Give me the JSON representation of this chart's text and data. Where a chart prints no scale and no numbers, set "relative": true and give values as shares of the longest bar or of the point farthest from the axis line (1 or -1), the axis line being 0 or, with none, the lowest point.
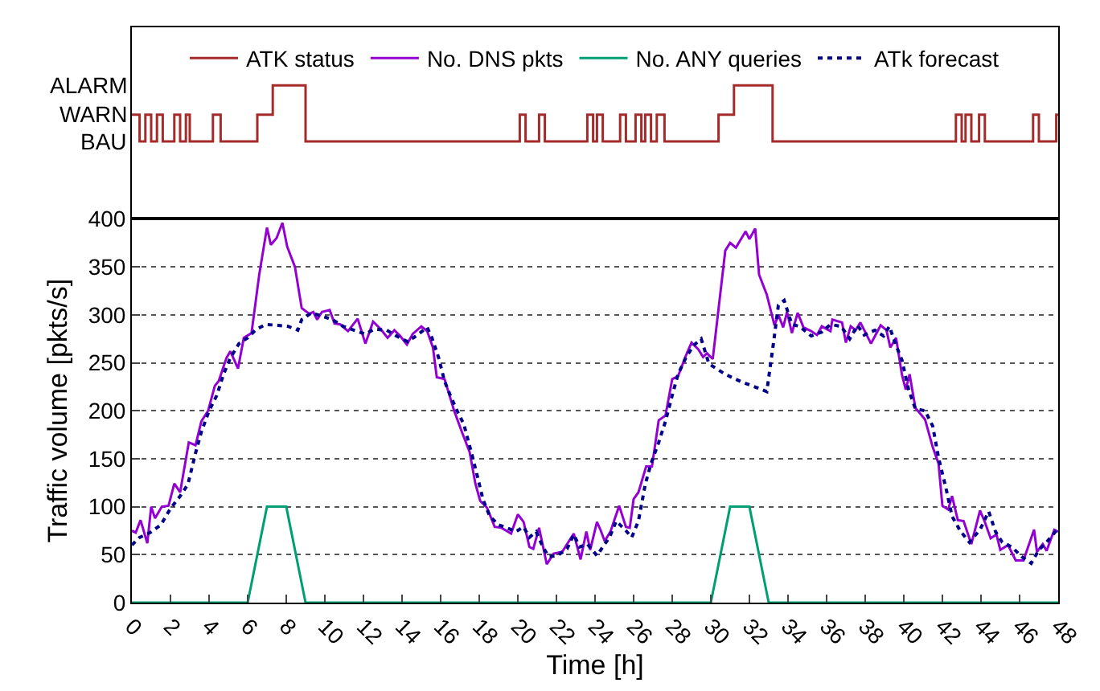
{
  "chart_data": [
    {
      "type": "step",
      "xlim": [
        0,
        48
      ],
      "tick_labels": false,
      "relative": true,
      "annotations": [
        "BAU",
        "WARN",
        "ALARM"
      ],
      "legend": "top",
      "marker": "none",
      "series": [
        {
          "name": "ATK status",
          "color": "#a52a2a",
          "x": [
            0,
            0.4,
            0.7,
            1.0,
            1.3,
            1.6,
            2.2,
            2.5,
            2.8,
            3.0,
            4.2,
            4.6,
            6.5,
            7.3,
            9.0,
            20.1,
            20.4,
            21.1,
            21.4,
            23.6,
            23.9,
            24.1,
            24.4,
            25.3,
            25.6,
            26.1,
            26.4,
            26.6,
            26.9,
            27.2,
            27.6,
            30.4,
            31.2,
            33.2,
            42.7,
            43.0,
            43.2,
            43.5,
            43.9,
            44.2,
            46.7,
            47.0,
            47.9,
            48
          ],
          "values": [
            0.78,
            0.58,
            0.78,
            0.58,
            0.78,
            0.58,
            0.78,
            0.58,
            0.78,
            0.58,
            0.78,
            0.58,
            0.78,
            1,
            0.58,
            0.78,
            0.58,
            0.78,
            0.58,
            0.78,
            0.58,
            0.78,
            0.58,
            0.78,
            0.58,
            0.78,
            0.58,
            0.78,
            0.58,
            0.78,
            0.58,
            0.78,
            1,
            0.58,
            0.78,
            0.58,
            0.78,
            0.58,
            0.78,
            0.58,
            0.78,
            0.58,
            0.78,
            0.78
          ]
        }
      ]
    },
    {
      "type": "line",
      "xlabel": "Time [h]",
      "ylabel": "Traffic volume [pkts/s]",
      "xlim": [
        0,
        48
      ],
      "xticks": [
        0,
        2,
        4,
        6,
        8,
        10,
        12,
        14,
        16,
        18,
        20,
        22,
        24,
        26,
        28,
        30,
        32,
        34,
        36,
        38,
        40,
        42,
        44,
        46,
        48
      ],
      "ylim": [
        0,
        400
      ],
      "yticks": [
        0,
        50,
        100,
        150,
        200,
        250,
        300,
        350,
        400
      ],
      "grid": "y",
      "legend": "top",
      "marker": "none",
      "series": [
        {
          "name": "No. DNS pkts",
          "color": "#9400d3",
          "x": [
            0,
            0.2,
            0.45,
            0.8,
            1,
            1.2,
            1.55,
            1.9,
            2.2,
            2.5,
            2.95,
            3.3,
            3.6,
            3.95,
            4.3,
            4.5,
            4.9,
            5.1,
            5.5,
            5.8,
            6.2,
            6.6,
            7.0,
            7.2,
            7.5,
            7.8,
            8.05,
            8.45,
            8.8,
            9.2,
            9.4,
            9.6,
            9.85,
            10.25,
            10.5,
            10.8,
            11.2,
            11.7,
            12.1,
            12.5,
            12.9,
            13.25,
            13.6,
            13.9,
            14.25,
            14.55,
            15,
            15.3,
            15.6,
            15.8,
            16.2,
            16.4,
            16.7,
            17.1,
            17.5,
            17.8,
            18.05,
            18.4,
            18.8,
            19.15,
            19.65,
            20,
            20.3,
            20.6,
            20.8,
            21.1,
            21.5,
            21.85,
            22.3,
            22.9,
            23.25,
            23.55,
            23.75,
            24.1,
            24.3,
            24.5,
            24.8,
            25.25,
            25.6,
            25.8,
            26,
            26.25,
            26.65,
            26.95,
            27.3,
            27.65,
            28,
            28.3,
            28.7,
            29,
            29.35,
            29.6,
            29.8,
            30.1,
            30.75,
            31,
            31.3,
            31.8,
            32,
            32.3,
            32.5,
            32.9,
            33.3,
            33.5,
            33.75,
            33.95,
            34.2,
            34.5,
            34.8,
            35.2,
            35.5,
            35.75,
            36.2,
            36.3,
            36.8,
            37,
            37.25,
            37.5,
            37.75,
            37.95,
            38.3,
            38.8,
            39.1,
            39.3,
            39.6,
            39.9,
            40.1,
            40.3,
            40.6,
            41.1,
            41.5,
            41.8,
            42,
            42.3,
            42.5,
            42.8,
            43.1,
            43.5,
            43.95,
            44.2,
            44.5,
            44.8,
            45,
            45.4,
            45.8,
            46.2,
            46.75,
            46.9,
            47.2,
            47.4,
            47.8,
            48
          ],
          "values": [
            75,
            73,
            86,
            62,
            100,
            88,
            100,
            101,
            124,
            115,
            167,
            164,
            189,
            200,
            226,
            231,
            255,
            262,
            244,
            276,
            281,
            342,
            391,
            373,
            380,
            396,
            371,
            350,
            307,
            301,
            303,
            295,
            303,
            305,
            291,
            290,
            283,
            296,
            270,
            293,
            285,
            276,
            284,
            278,
            269,
            280,
            288,
            283,
            266,
            235,
            233,
            220,
            200,
            178,
            157,
            124,
            106,
            99,
            79,
            78,
            72,
            92,
            84,
            58,
            56,
            78,
            40,
            51,
            53,
            72,
            45,
            74,
            55,
            84,
            75,
            64,
            74,
            101,
            79,
            78,
            108,
            115,
            142,
            142,
            190,
            195,
            233,
            236,
            257,
            271,
            264,
            256,
            260,
            254,
            367,
            375,
            370,
            387,
            379,
            390,
            342,
            321,
            289,
            300,
            287,
            303,
            281,
            302,
            287,
            283,
            279,
            288,
            283,
            295,
            292,
            271,
            288,
            284,
            292,
            284,
            270,
            289,
            284,
            266,
            276,
            238,
            222,
            238,
            203,
            191,
            162,
            145,
            101,
            97,
            111,
            86,
            85,
            61,
            96,
            84,
            67,
            71,
            55,
            60,
            44,
            44,
            76,
            53,
            61,
            54,
            76,
            74
          ]
        },
        {
          "name": "No. ANY queries",
          "color": "#009e73",
          "x": [
            0,
            6,
            7,
            8,
            9,
            30,
            31,
            32,
            33,
            48
          ],
          "values": [
            0,
            0,
            100,
            100,
            0,
            0,
            100,
            100,
            0,
            0
          ]
        },
        {
          "name": "ATk forecast",
          "color": "#00008b",
          "line_style": "dotted",
          "x": [
            0,
            0.4,
            0.95,
            1.5,
            2,
            2.5,
            2.9,
            3.3,
            3.6,
            4,
            4.4,
            4.75,
            5.1,
            5.55,
            6,
            6.45,
            6.95,
            7.6,
            8.1,
            8.6,
            8.8,
            9.3,
            9.8,
            10.4,
            10.95,
            11.5,
            12.1,
            12.55,
            13.2,
            13.7,
            14.3,
            14.8,
            15.3,
            15.55,
            15.9,
            16.2,
            16.5,
            16.85,
            17.2,
            17.6,
            17.9,
            18.2,
            18.55,
            19,
            19.55,
            19.9,
            20.3,
            20.6,
            20.95,
            21.3,
            21.6,
            22.05,
            22.55,
            22.9,
            23.2,
            23.6,
            24.1,
            24.4,
            24.75,
            25.1,
            25.6,
            25.9,
            26.25,
            26.6,
            26.9,
            27.3,
            27.65,
            28,
            28.3,
            28.7,
            29.1,
            29.5,
            29.9,
            30.75,
            31.6,
            32.4,
            32.9,
            33.25,
            33.5,
            33.8,
            34.2,
            34.6,
            35.2,
            35.75,
            36.2,
            36.75,
            37.2,
            37.6,
            37.95,
            38.5,
            38.95,
            39.25,
            39.6,
            39.9,
            40.25,
            40.6,
            41.1,
            41.5,
            41.8,
            42.2,
            42.5,
            42.95,
            43.4,
            43.95,
            44.4,
            44.75,
            45.1,
            45.6,
            46.1,
            46.6,
            47,
            47.4,
            47.9
          ],
          "values": [
            60,
            68,
            73,
            81,
            98,
            111,
            123,
            156,
            178,
            200,
            216,
            238,
            255,
            270,
            276,
            285,
            290,
            289,
            288,
            284,
            295,
            302,
            299,
            295,
            288,
            284,
            280,
            285,
            284,
            278,
            272,
            279,
            287,
            276,
            255,
            231,
            216,
            200,
            186,
            156,
            132,
            107,
            90,
            81,
            77,
            74,
            79,
            68,
            74,
            58,
            48,
            49,
            56,
            71,
            58,
            61,
            49,
            58,
            68,
            85,
            75,
            68,
            85,
            123,
            145,
            167,
            189,
            216,
            238,
            255,
            268,
            275,
            249,
            238,
            230,
            224,
            220,
            271,
            310,
            315,
            290,
            288,
            278,
            282,
            290,
            288,
            275,
            289,
            279,
            284,
            278,
            288,
            268,
            253,
            222,
            202,
            200,
            184,
            151,
            118,
            90,
            74,
            63,
            76,
            95,
            74,
            63,
            58,
            48,
            41,
            55,
            63,
            75
          ]
        }
      ]
    }
  ]
}
